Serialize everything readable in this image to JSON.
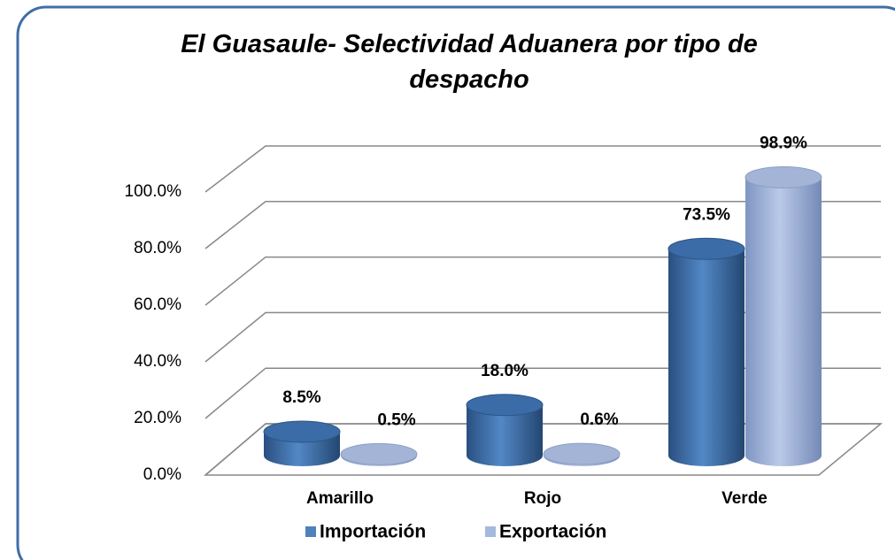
{
  "chart_data": {
    "type": "bar3d",
    "title": "El Guasaule- Selectividad Aduanera por tipo de despacho",
    "categories": [
      "Amarillo",
      "Rojo",
      "Verde"
    ],
    "series": [
      {
        "name": "Importación",
        "color": "#4f81bd",
        "values": [
          8.5,
          18.0,
          73.5
        ],
        "value_labels": [
          "8.5%",
          "18.0%",
          "73.5%"
        ]
      },
      {
        "name": "Exportación",
        "color": "#a5b8de",
        "values": [
          0.5,
          0.6,
          98.9
        ],
        "value_labels": [
          "0.5%",
          "0.6%",
          "98.9%"
        ]
      }
    ],
    "ylim": [
      0,
      100
    ],
    "yticks": [
      {
        "value": 0,
        "label": "0.0%"
      },
      {
        "value": 20,
        "label": "20.0%"
      },
      {
        "value": 40,
        "label": "40.0%"
      },
      {
        "value": 60,
        "label": "60.0%"
      },
      {
        "value": 80,
        "label": "80.0%"
      },
      {
        "value": 100,
        "label": "100.0%"
      }
    ],
    "grid": true,
    "legend": "bottom"
  }
}
